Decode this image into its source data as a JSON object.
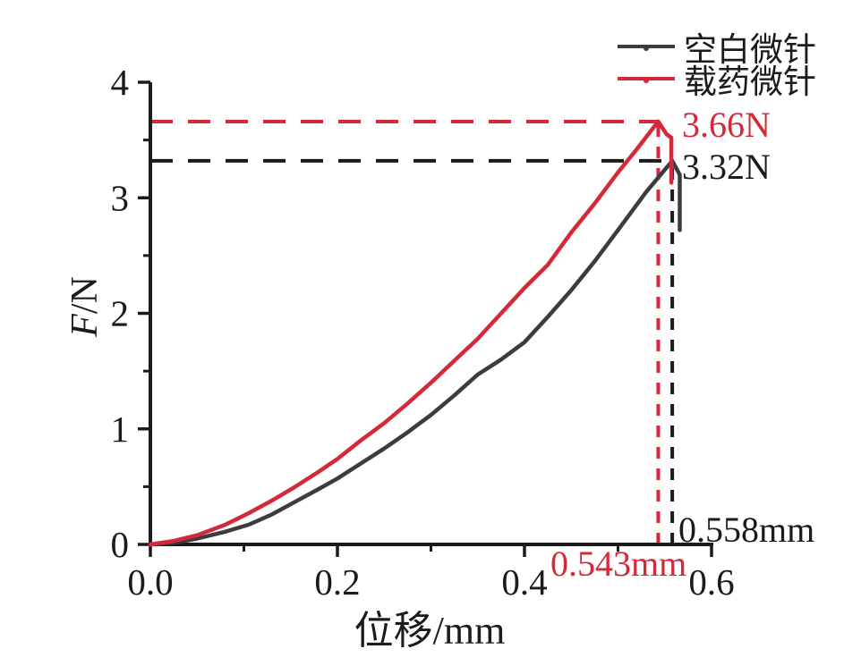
{
  "figure": {
    "background": "#ffffff",
    "text_color": "#1b1b1b"
  },
  "colors": {
    "blank_series": "#3c3c3e",
    "drug_series": "#d5293a",
    "axis": "#1b1b1b",
    "ink": "#1b1b1b",
    "red": "#d5293a"
  },
  "chart_data": {
    "type": "line",
    "title": "",
    "xlabel": "位移/mm",
    "ylabel": "F/N",
    "ylabel_symbol": "F",
    "ylabel_unit": "/N",
    "xlim": [
      0,
      0.6
    ],
    "ylim": [
      0,
      4
    ],
    "grid": false,
    "legend_position": "top-right",
    "x_ticks": {
      "major": [
        0,
        0.2,
        0.4,
        0.6
      ],
      "labels": [
        "0.0",
        "0.2",
        "0.4",
        "0.6"
      ],
      "minor": [
        0.1,
        0.3,
        0.5
      ]
    },
    "y_ticks": {
      "major": [
        0,
        1,
        2,
        3,
        4
      ],
      "labels": [
        "0",
        "1",
        "2",
        "3",
        "4"
      ],
      "minor": [
        0.5,
        1.5,
        2.5,
        3.5
      ]
    },
    "legend": {
      "items": [
        {
          "label": "空白微针",
          "color": "#3c3c3e"
        },
        {
          "label": "载药微针",
          "color": "#d5293a"
        }
      ]
    },
    "series": [
      {
        "name": "空白微针",
        "color": "#3c3c3e",
        "peak_force_n": 3.32,
        "peak_displacement_mm": 0.558,
        "points": [
          [
            0.0,
            0.0
          ],
          [
            0.025,
            0.015
          ],
          [
            0.05,
            0.05
          ],
          [
            0.08,
            0.11
          ],
          [
            0.105,
            0.17
          ],
          [
            0.13,
            0.26
          ],
          [
            0.155,
            0.37
          ],
          [
            0.18,
            0.48
          ],
          [
            0.2,
            0.57
          ],
          [
            0.225,
            0.7
          ],
          [
            0.25,
            0.83
          ],
          [
            0.275,
            0.97
          ],
          [
            0.3,
            1.12
          ],
          [
            0.325,
            1.29
          ],
          [
            0.35,
            1.47
          ],
          [
            0.375,
            1.6
          ],
          [
            0.4,
            1.75
          ],
          [
            0.425,
            1.97
          ],
          [
            0.45,
            2.2
          ],
          [
            0.475,
            2.45
          ],
          [
            0.5,
            2.72
          ],
          [
            0.53,
            3.05
          ],
          [
            0.558,
            3.32
          ],
          [
            0.566,
            3.2
          ],
          [
            0.566,
            2.72
          ]
        ]
      },
      {
        "name": "载药微针",
        "color": "#d5293a",
        "peak_force_n": 3.66,
        "peak_displacement_mm": 0.543,
        "points": [
          [
            0.0,
            0.0
          ],
          [
            0.025,
            0.03
          ],
          [
            0.05,
            0.08
          ],
          [
            0.08,
            0.17
          ],
          [
            0.105,
            0.27
          ],
          [
            0.13,
            0.38
          ],
          [
            0.155,
            0.5
          ],
          [
            0.18,
            0.63
          ],
          [
            0.2,
            0.74
          ],
          [
            0.225,
            0.9
          ],
          [
            0.25,
            1.05
          ],
          [
            0.275,
            1.22
          ],
          [
            0.3,
            1.4
          ],
          [
            0.325,
            1.59
          ],
          [
            0.35,
            1.78
          ],
          [
            0.375,
            2.0
          ],
          [
            0.4,
            2.22
          ],
          [
            0.425,
            2.42
          ],
          [
            0.45,
            2.7
          ],
          [
            0.475,
            2.95
          ],
          [
            0.5,
            3.22
          ],
          [
            0.52,
            3.42
          ],
          [
            0.543,
            3.66
          ],
          [
            0.552,
            3.55
          ],
          [
            0.557,
            3.52
          ],
          [
            0.557,
            3.13
          ]
        ]
      }
    ],
    "guides": [
      {
        "orient": "h",
        "value": 3.66,
        "from": 0,
        "to": 0.543,
        "color": "#d5293a"
      },
      {
        "orient": "h",
        "value": 3.32,
        "from": 0,
        "to": 0.558,
        "color": "#1b1b1b"
      },
      {
        "orient": "v",
        "value": 0.543,
        "from": 0,
        "to": 3.66,
        "color": "#d5293a"
      },
      {
        "orient": "v",
        "value": 0.558,
        "from": 0,
        "to": 3.32,
        "color": "#1b1b1b"
      }
    ],
    "annotations": [
      {
        "text": "3.66N",
        "color": "#d5293a"
      },
      {
        "text": "3.32N",
        "color": "#1b1b1b"
      },
      {
        "text": "0.558mm",
        "color": "#1b1b1b"
      },
      {
        "text": "0.543mm",
        "color": "#d5293a"
      }
    ]
  }
}
